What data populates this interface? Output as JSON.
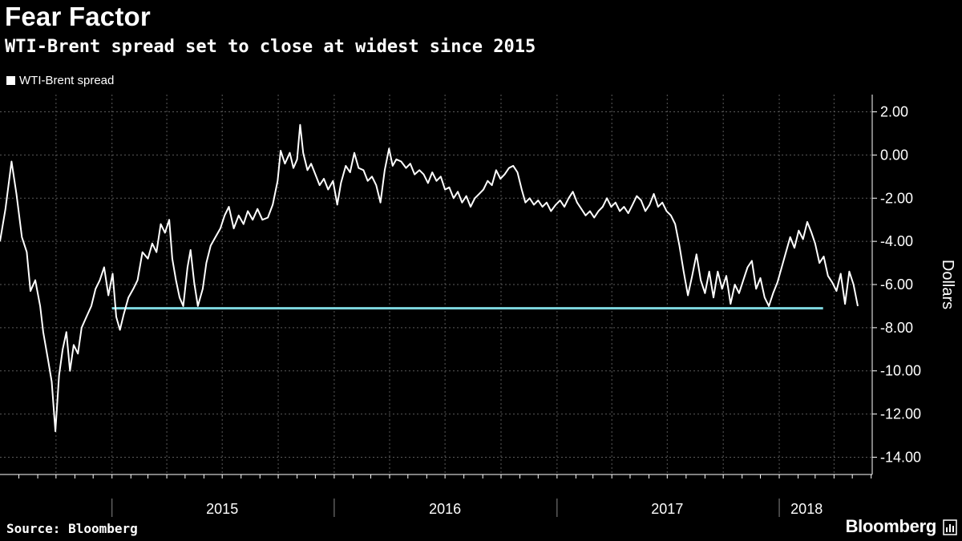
{
  "header": {
    "title": "Fear Factor",
    "subtitle": "WTI-Brent spread set to close at widest since 2015"
  },
  "footer": {
    "source": "Source: Bloomberg",
    "brand": "Bloomberg"
  },
  "colors": {
    "background": "#000000",
    "series_line": "#ffffff",
    "reference_line": "#7fd8e0",
    "grid": "#5a5a5a"
  },
  "chart_data": {
    "type": "line",
    "legend": {
      "placement": "top-left",
      "entries": [
        "WTI-Brent spread"
      ]
    },
    "ylabel": "Dollars",
    "ylim": [
      -14.8,
      2.8
    ],
    "yticks": [
      2,
      0,
      -2,
      -4,
      -6,
      -8,
      -10,
      -12,
      -14
    ],
    "ytick_labels": [
      "2.00",
      "0.00",
      "-2.00",
      "-4.00",
      "-6.00",
      "-8.00",
      "-10.00",
      "-12.00",
      "-14.00"
    ],
    "xlim": [
      "2014-07-01",
      "2018-04-01"
    ],
    "xlabels": [
      {
        "label": "2015",
        "date": "2015-07-01"
      },
      {
        "label": "2016",
        "date": "2016-07-01"
      },
      {
        "label": "2017",
        "date": "2017-07-01"
      },
      {
        "label": "2018",
        "date": "2018-02-15"
      }
    ],
    "year_boundaries": [
      "2015-01-01",
      "2016-01-01",
      "2017-01-01",
      "2018-01-01"
    ],
    "grid": true,
    "reference_line": {
      "value": -7.1,
      "from": "2015-01-01",
      "to": "2018-03-14"
    },
    "series": [
      {
        "name": "WTI-Brent spread",
        "points": [
          [
            "2014-07-01",
            -4.0
          ],
          [
            "2014-07-10",
            -2.5
          ],
          [
            "2014-07-20",
            -0.3
          ],
          [
            "2014-07-28",
            -1.8
          ],
          [
            "2014-08-06",
            -3.8
          ],
          [
            "2014-08-14",
            -4.5
          ],
          [
            "2014-08-20",
            -6.3
          ],
          [
            "2014-08-28",
            -5.8
          ],
          [
            "2014-09-05",
            -7.0
          ],
          [
            "2014-09-10",
            -8.2
          ],
          [
            "2014-09-18",
            -9.5
          ],
          [
            "2014-09-24",
            -10.5
          ],
          [
            "2014-09-30",
            -12.8
          ],
          [
            "2014-10-06",
            -10.2
          ],
          [
            "2014-10-12",
            -9.0
          ],
          [
            "2014-10-18",
            -8.2
          ],
          [
            "2014-10-24",
            -10.0
          ],
          [
            "2014-10-30",
            -8.8
          ],
          [
            "2014-11-06",
            -9.2
          ],
          [
            "2014-11-12",
            -8.0
          ],
          [
            "2014-11-20",
            -7.5
          ],
          [
            "2014-11-28",
            -7.0
          ],
          [
            "2014-12-05",
            -6.2
          ],
          [
            "2014-12-12",
            -5.8
          ],
          [
            "2014-12-19",
            -5.2
          ],
          [
            "2014-12-26",
            -6.5
          ],
          [
            "2015-01-02",
            -5.5
          ],
          [
            "2015-01-08",
            -7.5
          ],
          [
            "2015-01-14",
            -8.1
          ],
          [
            "2015-01-20",
            -7.4
          ],
          [
            "2015-01-28",
            -6.6
          ],
          [
            "2015-02-05",
            -6.2
          ],
          [
            "2015-02-12",
            -5.8
          ],
          [
            "2015-02-20",
            -4.5
          ],
          [
            "2015-03-01",
            -4.8
          ],
          [
            "2015-03-08",
            -4.1
          ],
          [
            "2015-03-15",
            -4.5
          ],
          [
            "2015-03-22",
            -3.2
          ],
          [
            "2015-03-29",
            -3.6
          ],
          [
            "2015-04-05",
            -3.0
          ],
          [
            "2015-04-10",
            -4.8
          ],
          [
            "2015-04-16",
            -5.8
          ],
          [
            "2015-04-22",
            -6.6
          ],
          [
            "2015-04-28",
            -7.0
          ],
          [
            "2015-05-05",
            -5.2
          ],
          [
            "2015-05-10",
            -4.4
          ],
          [
            "2015-05-16",
            -5.9
          ],
          [
            "2015-05-22",
            -7.0
          ],
          [
            "2015-05-30",
            -6.2
          ],
          [
            "2015-06-05",
            -5.0
          ],
          [
            "2015-06-12",
            -4.2
          ],
          [
            "2015-06-20",
            -3.8
          ],
          [
            "2015-06-28",
            -3.4
          ],
          [
            "2015-07-05",
            -2.8
          ],
          [
            "2015-07-12",
            -2.4
          ],
          [
            "2015-07-20",
            -3.4
          ],
          [
            "2015-07-28",
            -2.8
          ],
          [
            "2015-08-05",
            -3.2
          ],
          [
            "2015-08-12",
            -2.6
          ],
          [
            "2015-08-20",
            -3.0
          ],
          [
            "2015-08-28",
            -2.5
          ],
          [
            "2015-09-05",
            -3.0
          ],
          [
            "2015-09-14",
            -2.9
          ],
          [
            "2015-09-22",
            -2.3
          ],
          [
            "2015-09-30",
            -1.2
          ],
          [
            "2015-10-05",
            0.2
          ],
          [
            "2015-10-12",
            -0.4
          ],
          [
            "2015-10-20",
            0.1
          ],
          [
            "2015-10-26",
            -0.6
          ],
          [
            "2015-11-01",
            -0.2
          ],
          [
            "2015-11-06",
            1.4
          ],
          [
            "2015-11-11",
            0.1
          ],
          [
            "2015-11-18",
            -0.7
          ],
          [
            "2015-11-24",
            -0.4
          ],
          [
            "2015-12-01",
            -0.9
          ],
          [
            "2015-12-08",
            -1.4
          ],
          [
            "2015-12-15",
            -1.1
          ],
          [
            "2015-12-22",
            -1.6
          ],
          [
            "2015-12-30",
            -1.2
          ],
          [
            "2016-01-06",
            -2.3
          ],
          [
            "2016-01-12",
            -1.3
          ],
          [
            "2016-01-20",
            -0.5
          ],
          [
            "2016-01-27",
            -0.8
          ],
          [
            "2016-02-03",
            0.1
          ],
          [
            "2016-02-10",
            -0.6
          ],
          [
            "2016-02-18",
            -0.7
          ],
          [
            "2016-02-25",
            -1.2
          ],
          [
            "2016-03-03",
            -1.0
          ],
          [
            "2016-03-10",
            -1.4
          ],
          [
            "2016-03-17",
            -2.2
          ],
          [
            "2016-03-24",
            -0.7
          ],
          [
            "2016-03-31",
            0.3
          ],
          [
            "2016-04-06",
            -0.5
          ],
          [
            "2016-04-12",
            -0.2
          ],
          [
            "2016-04-20",
            -0.3
          ],
          [
            "2016-04-28",
            -0.6
          ],
          [
            "2016-05-05",
            -0.4
          ],
          [
            "2016-05-12",
            -0.9
          ],
          [
            "2016-05-20",
            -0.7
          ],
          [
            "2016-05-27",
            -0.9
          ],
          [
            "2016-06-03",
            -1.3
          ],
          [
            "2016-06-10",
            -0.8
          ],
          [
            "2016-06-17",
            -1.2
          ],
          [
            "2016-06-24",
            -1.0
          ],
          [
            "2016-07-01",
            -1.6
          ],
          [
            "2016-07-08",
            -1.5
          ],
          [
            "2016-07-15",
            -2.0
          ],
          [
            "2016-07-22",
            -1.7
          ],
          [
            "2016-07-29",
            -2.2
          ],
          [
            "2016-08-05",
            -1.9
          ],
          [
            "2016-08-12",
            -2.4
          ],
          [
            "2016-08-19",
            -2.0
          ],
          [
            "2016-08-26",
            -1.8
          ],
          [
            "2016-09-02",
            -1.6
          ],
          [
            "2016-09-09",
            -1.2
          ],
          [
            "2016-09-16",
            -1.4
          ],
          [
            "2016-09-23",
            -0.7
          ],
          [
            "2016-09-30",
            -1.1
          ],
          [
            "2016-10-07",
            -0.9
          ],
          [
            "2016-10-14",
            -0.6
          ],
          [
            "2016-10-21",
            -0.5
          ],
          [
            "2016-10-28",
            -0.8
          ],
          [
            "2016-11-04",
            -1.6
          ],
          [
            "2016-11-10",
            -2.2
          ],
          [
            "2016-11-17",
            -2.0
          ],
          [
            "2016-11-24",
            -2.3
          ],
          [
            "2016-12-01",
            -2.1
          ],
          [
            "2016-12-08",
            -2.4
          ],
          [
            "2016-12-15",
            -2.2
          ],
          [
            "2016-12-22",
            -2.6
          ],
          [
            "2016-12-30",
            -2.3
          ],
          [
            "2017-01-06",
            -2.1
          ],
          [
            "2017-01-13",
            -2.4
          ],
          [
            "2017-01-20",
            -2.0
          ],
          [
            "2017-01-27",
            -1.7
          ],
          [
            "2017-02-03",
            -2.2
          ],
          [
            "2017-02-10",
            -2.5
          ],
          [
            "2017-02-17",
            -2.8
          ],
          [
            "2017-02-24",
            -2.6
          ],
          [
            "2017-03-03",
            -2.9
          ],
          [
            "2017-03-10",
            -2.6
          ],
          [
            "2017-03-17",
            -2.4
          ],
          [
            "2017-03-24",
            -2.0
          ],
          [
            "2017-03-31",
            -2.4
          ],
          [
            "2017-04-07",
            -2.2
          ],
          [
            "2017-04-14",
            -2.6
          ],
          [
            "2017-04-21",
            -2.4
          ],
          [
            "2017-04-28",
            -2.7
          ],
          [
            "2017-05-05",
            -2.3
          ],
          [
            "2017-05-12",
            -1.9
          ],
          [
            "2017-05-19",
            -2.1
          ],
          [
            "2017-05-26",
            -2.6
          ],
          [
            "2017-06-02",
            -2.3
          ],
          [
            "2017-06-09",
            -1.8
          ],
          [
            "2017-06-16",
            -2.4
          ],
          [
            "2017-06-23",
            -2.2
          ],
          [
            "2017-06-30",
            -2.6
          ],
          [
            "2017-07-07",
            -2.8
          ],
          [
            "2017-07-14",
            -3.2
          ],
          [
            "2017-07-21",
            -4.2
          ],
          [
            "2017-07-28",
            -5.4
          ],
          [
            "2017-08-04",
            -6.5
          ],
          [
            "2017-08-11",
            -5.6
          ],
          [
            "2017-08-18",
            -4.6
          ],
          [
            "2017-08-25",
            -5.8
          ],
          [
            "2017-09-01",
            -6.4
          ],
          [
            "2017-09-08",
            -5.4
          ],
          [
            "2017-09-15",
            -6.6
          ],
          [
            "2017-09-22",
            -5.4
          ],
          [
            "2017-09-29",
            -6.2
          ],
          [
            "2017-10-06",
            -5.6
          ],
          [
            "2017-10-13",
            -6.9
          ],
          [
            "2017-10-20",
            -6.0
          ],
          [
            "2017-10-27",
            -6.4
          ],
          [
            "2017-11-03",
            -5.8
          ],
          [
            "2017-11-10",
            -5.2
          ],
          [
            "2017-11-17",
            -4.9
          ],
          [
            "2017-11-24",
            -6.2
          ],
          [
            "2017-12-01",
            -5.7
          ],
          [
            "2017-12-08",
            -6.6
          ],
          [
            "2017-12-15",
            -7.0
          ],
          [
            "2017-12-22",
            -6.4
          ],
          [
            "2017-12-29",
            -5.9
          ],
          [
            "2018-01-05",
            -5.2
          ],
          [
            "2018-01-12",
            -4.5
          ],
          [
            "2018-01-19",
            -3.8
          ],
          [
            "2018-01-26",
            -4.3
          ],
          [
            "2018-02-02",
            -3.5
          ],
          [
            "2018-02-09",
            -3.9
          ],
          [
            "2018-02-16",
            -3.1
          ],
          [
            "2018-02-23",
            -3.6
          ],
          [
            "2018-03-01",
            -4.1
          ],
          [
            "2018-03-08",
            -5.0
          ],
          [
            "2018-03-15",
            -4.7
          ],
          [
            "2018-03-22",
            -5.6
          ],
          [
            "2018-03-29",
            -5.9
          ],
          [
            "2018-04-05",
            -6.3
          ],
          [
            "2018-04-12",
            -5.5
          ],
          [
            "2018-04-19",
            -6.9
          ],
          [
            "2018-04-26",
            -5.4
          ],
          [
            "2018-05-03",
            -6.0
          ],
          [
            "2018-05-10",
            -7.0
          ]
        ]
      }
    ]
  }
}
